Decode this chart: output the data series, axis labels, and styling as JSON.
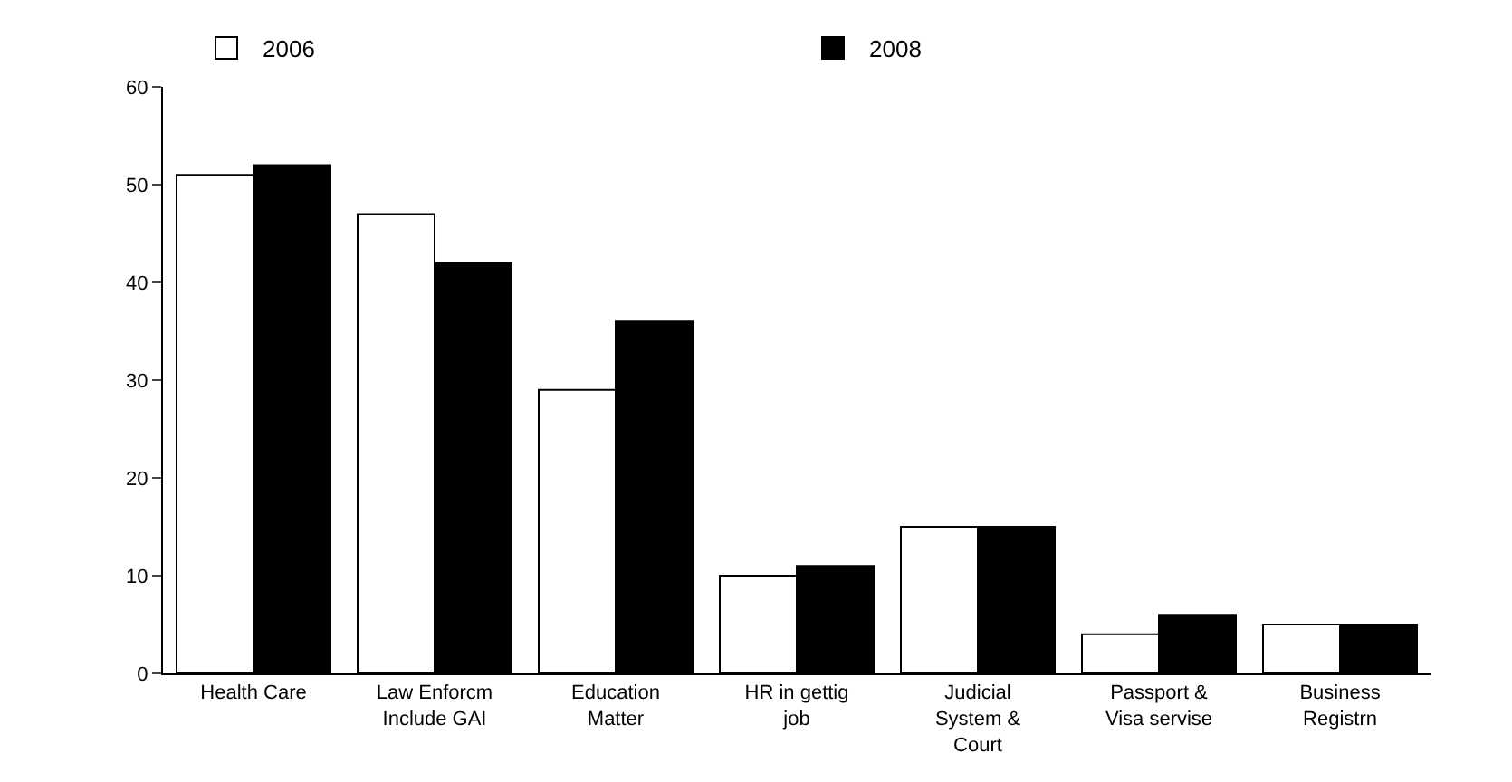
{
  "chart_data": {
    "type": "bar",
    "categories": [
      "Health Care",
      "Law Enforcm\nInclude GAI",
      "Education\nMatter",
      "HR in gettig\njob",
      "Judicial\nSystem &\nCourt",
      "Passport &\nVisa servise",
      "Business\nRegistrn"
    ],
    "series": [
      {
        "name": "2006",
        "color": "#ffffff",
        "values": [
          51,
          47,
          29,
          10,
          15,
          4,
          5
        ]
      },
      {
        "name": "2008",
        "color": "#000000",
        "values": [
          52,
          42,
          36,
          11,
          15,
          6,
          5
        ]
      }
    ],
    "ylim": [
      0,
      60
    ],
    "yticks": [
      0,
      10,
      20,
      30,
      40,
      50,
      60
    ],
    "grid": false,
    "legend": "top"
  }
}
